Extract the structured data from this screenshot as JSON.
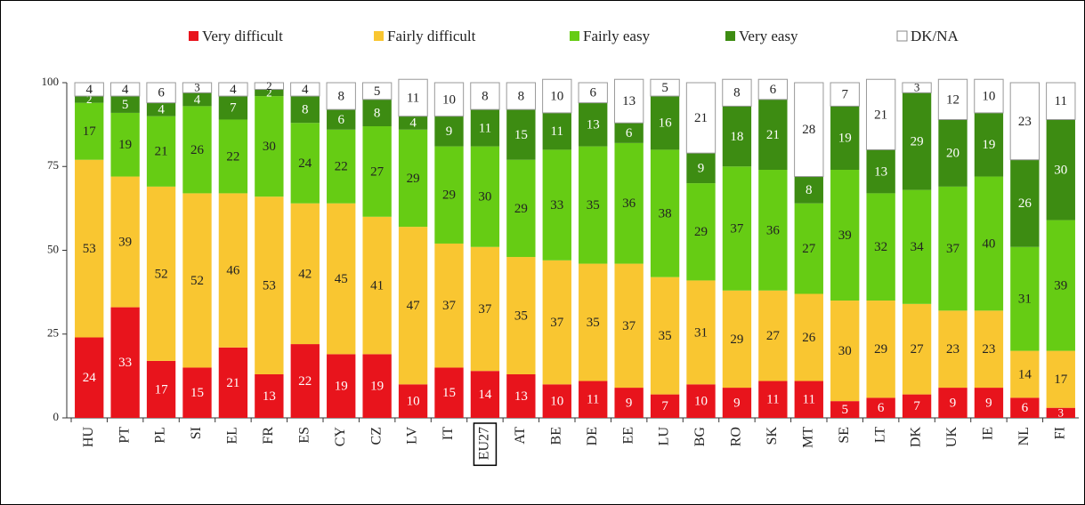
{
  "chart_data": {
    "type": "bar",
    "stacked": true,
    "legend": "top",
    "categories": [
      "HU",
      "PT",
      "PL",
      "SI",
      "EL",
      "FR",
      "ES",
      "CY",
      "CZ",
      "LV",
      "IT",
      "EU27",
      "AT",
      "BE",
      "DE",
      "EE",
      "LU",
      "BG",
      "RO",
      "SK",
      "MT",
      "SE",
      "LT",
      "DK",
      "UK",
      "IE",
      "NL",
      "FI"
    ],
    "series": [
      {
        "name": "Very difficult",
        "color": "#e8141c",
        "values": [
          24,
          33,
          17,
          15,
          21,
          13,
          22,
          19,
          19,
          10,
          15,
          14,
          13,
          10,
          11,
          9,
          7,
          10,
          9,
          11,
          11,
          5,
          6,
          7,
          9,
          9,
          6,
          3
        ]
      },
      {
        "name": "Fairly difficult",
        "color": "#f9c631",
        "values": [
          53,
          39,
          52,
          52,
          46,
          53,
          42,
          45,
          41,
          47,
          37,
          37,
          35,
          37,
          35,
          37,
          35,
          31,
          29,
          27,
          26,
          30,
          29,
          27,
          23,
          23,
          14,
          17
        ]
      },
      {
        "name": "Fairly easy",
        "color": "#66cc14",
        "values": [
          17,
          19,
          21,
          26,
          22,
          30,
          24,
          22,
          27,
          29,
          29,
          30,
          29,
          33,
          35,
          36,
          38,
          29,
          37,
          36,
          27,
          39,
          32,
          34,
          37,
          40,
          31,
          39
        ]
      },
      {
        "name": "Very easy",
        "color": "#3d8c12",
        "values": [
          2,
          5,
          4,
          4,
          7,
          2,
          8,
          6,
          8,
          4,
          9,
          11,
          15,
          11,
          13,
          6,
          16,
          9,
          18,
          21,
          8,
          19,
          13,
          29,
          20,
          19,
          26,
          30
        ]
      },
      {
        "name": "DK/NA",
        "color": "#ffffff",
        "values": [
          4,
          4,
          6,
          3,
          4,
          2,
          4,
          8,
          5,
          11,
          10,
          8,
          8,
          10,
          6,
          13,
          5,
          21,
          8,
          6,
          28,
          7,
          21,
          3,
          12,
          10,
          23,
          11
        ]
      }
    ],
    "ylim": [
      0,
      100
    ],
    "yticks": [
      0,
      25,
      50,
      75,
      100
    ]
  }
}
